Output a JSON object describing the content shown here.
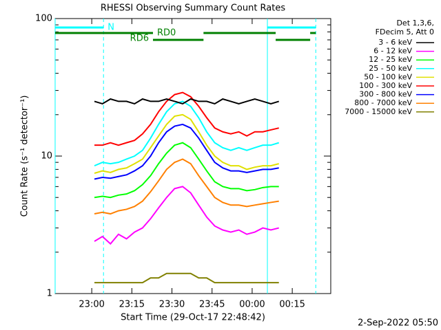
{
  "chart_data": {
    "type": "line",
    "title": "RHESSI Observing Summary Count Rates",
    "xlabel": "Start Time (29-Oct-17 22:48:42)",
    "ylabel": "Count Rate (s⁻¹ detector⁻¹)",
    "footer": "2-Sep-2022 05:50",
    "legend_header": [
      "Det 1,3,6,",
      "FDecim 5, Att 0"
    ],
    "log_y": true,
    "ylim": [
      1,
      100
    ],
    "yticks": [
      1,
      10,
      100
    ],
    "yminor_ticks": [
      2,
      3,
      4,
      5,
      6,
      7,
      8,
      9,
      20,
      30,
      40,
      50,
      60,
      70,
      80,
      90
    ],
    "xlim": [
      1366.3,
      1469.4
    ],
    "xticks": [
      {
        "value": 1380,
        "label": "23:00"
      },
      {
        "value": 1395,
        "label": "23:15"
      },
      {
        "value": 1410,
        "label": "23:30"
      },
      {
        "value": 1425,
        "label": "23:45"
      },
      {
        "value": 1440,
        "label": "00:00"
      },
      {
        "value": 1455,
        "label": "00:15"
      }
    ],
    "x": [
      1381,
      1384,
      1387,
      1390,
      1393,
      1396,
      1399,
      1402,
      1405,
      1408,
      1411,
      1414,
      1417,
      1420,
      1423,
      1426,
      1429,
      1432,
      1435,
      1438,
      1441,
      1444,
      1447,
      1450
    ],
    "series": [
      {
        "name": "3 - 6 keV",
        "color": "#000000",
        "values": [
          25,
          24,
          26,
          25,
          25,
          24,
          26,
          25,
          25,
          26,
          25,
          24,
          26,
          25,
          25,
          24,
          26,
          25,
          24,
          25,
          26,
          25,
          24,
          25
        ]
      },
      {
        "name": "6 - 12 keV",
        "color": "#ff00ff",
        "values": [
          2.4,
          2.6,
          2.3,
          2.7,
          2.5,
          2.8,
          3,
          3.5,
          4.2,
          5,
          5.8,
          6,
          5.4,
          4.4,
          3.6,
          3.1,
          2.9,
          2.8,
          2.9,
          2.7,
          2.8,
          3,
          2.9,
          3
        ]
      },
      {
        "name": "12 - 25 keV",
        "color": "#00ff00",
        "values": [
          5,
          5.1,
          5,
          5.2,
          5.3,
          5.6,
          6.2,
          7.2,
          8.8,
          10.5,
          12,
          12.5,
          11.5,
          9.5,
          7.8,
          6.5,
          6,
          5.8,
          5.8,
          5.6,
          5.7,
          5.9,
          6,
          6
        ]
      },
      {
        "name": "25 - 50 keV",
        "color": "#00ffff",
        "values": [
          8.5,
          9,
          8.8,
          9,
          9.5,
          10,
          11,
          13.5,
          17,
          21,
          24,
          25,
          23,
          19,
          15,
          12.5,
          11.5,
          11,
          11.5,
          11,
          11.5,
          12,
          12,
          12.5
        ]
      },
      {
        "name": "50 - 100 keV",
        "color": "#e0e000",
        "values": [
          7.5,
          7.8,
          7.6,
          8,
          8.2,
          8.8,
          9.5,
          11.5,
          14,
          17,
          19.5,
          20,
          18.5,
          15,
          12,
          10,
          9,
          8.5,
          8.5,
          8,
          8.3,
          8.5,
          8.5,
          8.8
        ]
      },
      {
        "name": "100 - 300 keV",
        "color": "#ff0000",
        "values": [
          12,
          12,
          12.5,
          12,
          12.5,
          13,
          14.5,
          17,
          21,
          25,
          28,
          29,
          27,
          23,
          19,
          16,
          15,
          14.5,
          15,
          14,
          15,
          15,
          15.5,
          16
        ]
      },
      {
        "name": "300 - 800 keV",
        "color": "#0000ff",
        "values": [
          6.8,
          7,
          6.9,
          7.1,
          7.3,
          7.8,
          8.5,
          10,
          12.5,
          15,
          16.5,
          17,
          16,
          13.5,
          11,
          9,
          8.2,
          7.8,
          7.8,
          7.6,
          7.8,
          8,
          8,
          8.2
        ]
      },
      {
        "name": "800 - 7000 keV",
        "color": "#ff8000",
        "values": [
          3.8,
          3.9,
          3.8,
          4,
          4.1,
          4.3,
          4.7,
          5.5,
          6.6,
          8,
          9,
          9.5,
          8.8,
          7.2,
          6,
          5,
          4.6,
          4.4,
          4.4,
          4.3,
          4.4,
          4.5,
          4.6,
          4.7
        ]
      },
      {
        "name": "7000 - 15000 keV",
        "color": "#808000",
        "values": [
          1.2,
          1.2,
          1.2,
          1.2,
          1.2,
          1.2,
          1.2,
          1.3,
          1.3,
          1.4,
          1.4,
          1.4,
          1.4,
          1.3,
          1.3,
          1.2,
          1.2,
          1.2,
          1.2,
          1.2,
          1.2,
          1.2,
          1.2,
          1.2
        ]
      }
    ],
    "annotations": [
      {
        "label": "N",
        "color": "#00ffff",
        "intervals": [
          [
            1366.3,
            1384.4
          ],
          [
            1445.7,
            1463.8
          ]
        ]
      },
      {
        "label": "RD0",
        "color": "#008000",
        "intervals": [
          [
            1366.3,
            1402.9
          ],
          [
            1421.8,
            1448.8
          ],
          [
            1461.7,
            1463.8
          ]
        ]
      },
      {
        "label": "RD6",
        "color": "#008000",
        "intervals": [
          [
            1402.9,
            1421.8
          ],
          [
            1448.8,
            1461.7
          ]
        ]
      }
    ]
  }
}
